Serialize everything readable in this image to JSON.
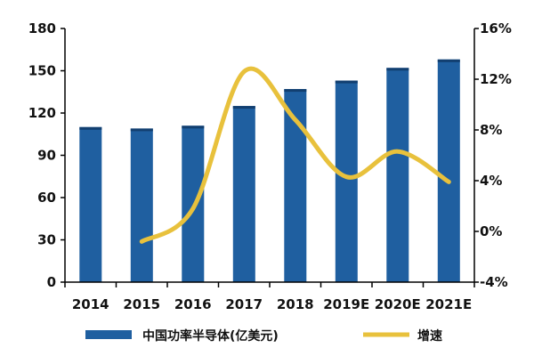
{
  "chart_data": {
    "type": "bar",
    "categories": [
      "2014",
      "2015",
      "2016",
      "2017",
      "2018",
      "2019E",
      "2020E",
      "2021E"
    ],
    "series": [
      {
        "name": "中国功率半导体(亿美元)",
        "type": "bar",
        "axis": "left",
        "color": "#1f5fa0",
        "values": [
          110,
          109,
          111,
          125,
          137,
          143,
          152,
          158
        ]
      },
      {
        "name": "增速",
        "type": "line",
        "axis": "right",
        "color": "#e8c13c",
        "values": [
          null,
          -0.8,
          1.8,
          12.6,
          8.8,
          4.3,
          6.3,
          3.9
        ]
      }
    ],
    "y_left": {
      "ticks": [
        "0",
        "30",
        "60",
        "90",
        "120",
        "150",
        "180"
      ],
      "min": 0,
      "max": 180
    },
    "y_right": {
      "ticks": [
        "-4%",
        "0%",
        "4%",
        "8%",
        "12%",
        "16%"
      ],
      "min": -4,
      "max": 16
    },
    "grid": false,
    "legend_position": "bottom"
  }
}
